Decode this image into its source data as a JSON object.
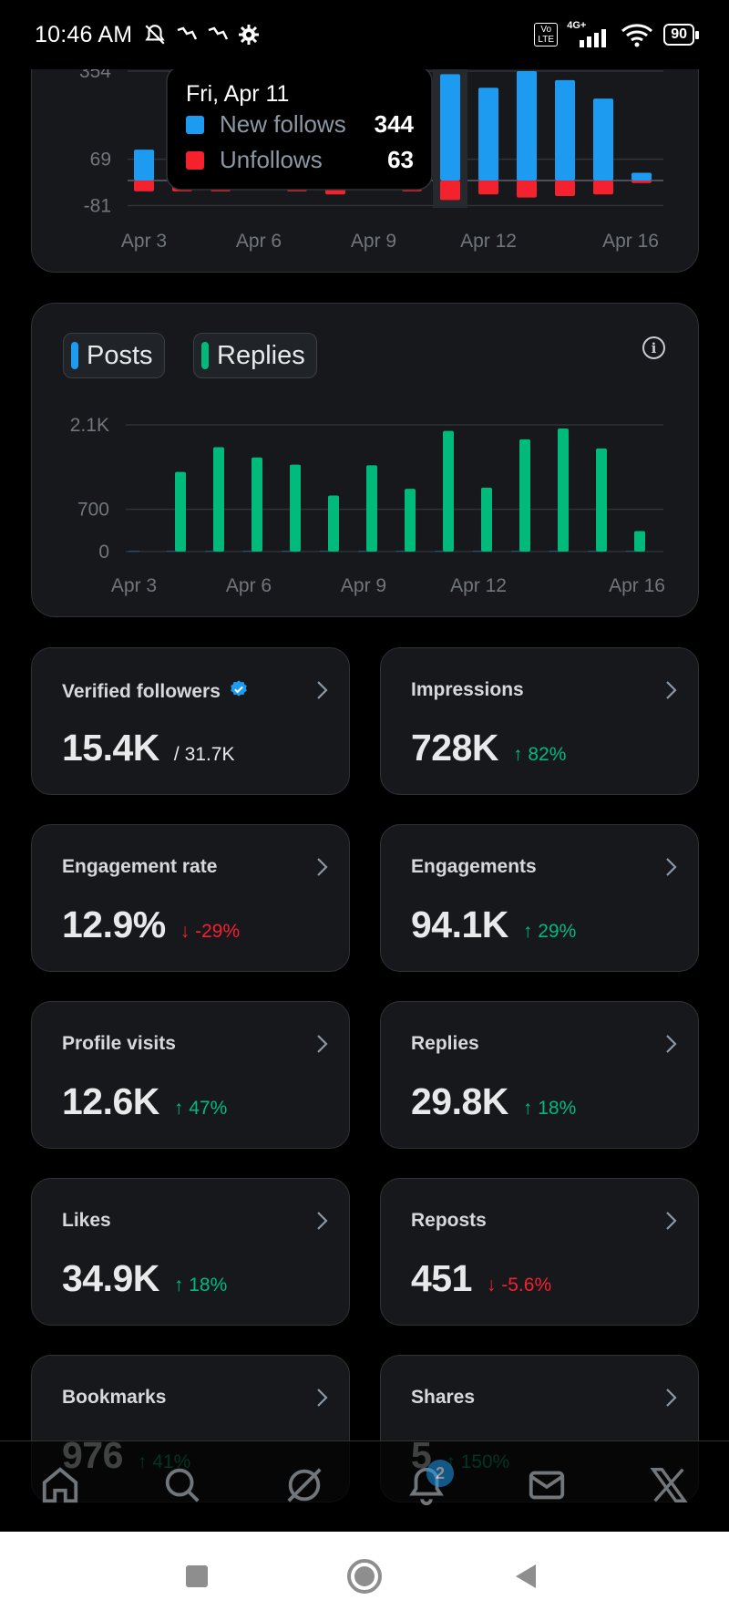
{
  "status_bar": {
    "time": "10:46 AM",
    "left_icons": [
      "bell-muted-icon",
      "signal-flag-icon",
      "signal-flag-icon",
      "settings-gear-icon"
    ],
    "volte_label": "Vo LTE",
    "network_label": "4G+",
    "battery": "90"
  },
  "followers_chart": {
    "chart_data": {
      "type": "bar",
      "title": "",
      "categories": [
        "Apr 3",
        "Apr 4",
        "Apr 5",
        "Apr 6",
        "Apr 7",
        "Apr 8",
        "Apr 9",
        "Apr 10",
        "Apr 11",
        "Apr 12",
        "Apr 13",
        "Apr 14",
        "Apr 15",
        "Apr 16"
      ],
      "series": [
        {
          "name": "New follows",
          "color": "#1d9bf0",
          "values": [
            100,
            0,
            0,
            0,
            0,
            0,
            0,
            0,
            344,
            300,
            354,
            325,
            265,
            25
          ]
        },
        {
          "name": "Unfollows",
          "color": "#f4212e",
          "values": [
            -35,
            -35,
            -35,
            -30,
            -35,
            -45,
            -30,
            -35,
            -63,
            -45,
            -55,
            -50,
            -45,
            -8
          ]
        }
      ],
      "y_ticks": [
        "354",
        "69",
        "-81"
      ],
      "x_ticks": [
        "Apr 3",
        "Apr 6",
        "Apr 9",
        "Apr 12",
        "Apr 16"
      ],
      "ylim": [
        -81,
        354
      ]
    },
    "tooltip": {
      "date": "Fri, Apr 11",
      "rows": [
        {
          "label": "New follows",
          "value": "344",
          "color": "#1d9bf0"
        },
        {
          "label": "Unfollows",
          "value": "63",
          "color": "#f4212e"
        }
      ]
    }
  },
  "posts_chart": {
    "legend": [
      {
        "label": "Posts",
        "color": "#1d9bf0"
      },
      {
        "label": "Replies",
        "color": "#00ba7c"
      }
    ],
    "info_icon": "info-icon",
    "chart_data": {
      "type": "bar",
      "title": "",
      "categories": [
        "Apr 3",
        "Apr 4",
        "Apr 5",
        "Apr 6",
        "Apr 7",
        "Apr 8",
        "Apr 9",
        "Apr 10",
        "Apr 11",
        "Apr 12",
        "Apr 13",
        "Apr 14",
        "Apr 15",
        "Apr 16"
      ],
      "series": [
        {
          "name": "Posts",
          "color": "#1d9bf0",
          "values": [
            0,
            0,
            0,
            0,
            0,
            0,
            0,
            0,
            0,
            0,
            0,
            0,
            0,
            0
          ]
        },
        {
          "name": "Replies",
          "color": "#00ba7c",
          "values": [
            0,
            1320,
            1730,
            1560,
            1440,
            930,
            1430,
            1040,
            2000,
            1060,
            1860,
            2040,
            1710,
            340
          ]
        }
      ],
      "y_ticks": [
        "2.1K",
        "700",
        "0"
      ],
      "x_ticks": [
        "Apr 3",
        "Apr 6",
        "Apr 9",
        "Apr 12",
        "Apr 16"
      ],
      "ylim": [
        0,
        2100
      ]
    }
  },
  "stats": [
    {
      "title": "Verified followers",
      "value": "15.4K",
      "sub": "/ 31.7K",
      "change": "",
      "trend": "",
      "verified": true
    },
    {
      "title": "Impressions",
      "value": "728K",
      "sub": "",
      "change": "82%",
      "trend": "up",
      "verified": false
    },
    {
      "title": "Engagement rate",
      "value": "12.9%",
      "sub": "",
      "change": "-29%",
      "trend": "down",
      "verified": false
    },
    {
      "title": "Engagements",
      "value": "94.1K",
      "sub": "",
      "change": "29%",
      "trend": "up",
      "verified": false
    },
    {
      "title": "Profile visits",
      "value": "12.6K",
      "sub": "",
      "change": "47%",
      "trend": "up",
      "verified": false
    },
    {
      "title": "Replies",
      "value": "29.8K",
      "sub": "",
      "change": "18%",
      "trend": "up",
      "verified": false
    },
    {
      "title": "Likes",
      "value": "34.9K",
      "sub": "",
      "change": "18%",
      "trend": "up",
      "verified": false
    },
    {
      "title": "Reposts",
      "value": "451",
      "sub": "",
      "change": "-5.6%",
      "trend": "down",
      "verified": false
    },
    {
      "title": "Bookmarks",
      "value": "976",
      "sub": "",
      "change": "41%",
      "trend": "up",
      "verified": false
    },
    {
      "title": "Shares",
      "value": "5",
      "sub": "",
      "change": "150%",
      "trend": "up",
      "verified": false
    }
  ],
  "bottom_nav": {
    "items": [
      {
        "name": "home-icon"
      },
      {
        "name": "search-icon"
      },
      {
        "name": "grok-icon"
      },
      {
        "name": "notifications-bell-icon"
      },
      {
        "name": "messages-envelope-icon"
      },
      {
        "name": "x-logo-icon"
      }
    ],
    "notification_badge": "2"
  },
  "android_nav": [
    "recents-square-icon",
    "home-circle-icon",
    "back-triangle-icon"
  ],
  "colors": {
    "background": "#000000",
    "card": "#16181c",
    "border": "#2f3336",
    "blue": "#1d9bf0",
    "green": "#00ba7c",
    "red": "#f4212e"
  }
}
